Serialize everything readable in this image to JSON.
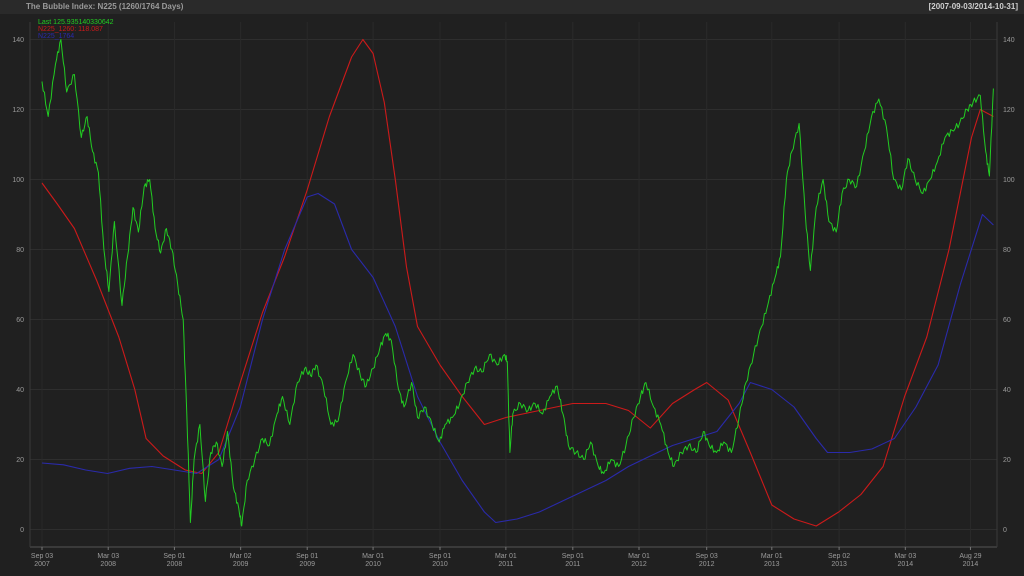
{
  "header": {
    "title": "The Bubble Index: N225 (1260/1764 Days)",
    "date_range": "[2007-09-03/2014-10-31]"
  },
  "chart_data": {
    "type": "line",
    "ylim": [
      -5,
      145
    ],
    "yticks": [
      0,
      20,
      40,
      60,
      80,
      100,
      120,
      140
    ],
    "xlim": [
      "2007-08-01",
      "2014-11-10"
    ],
    "xticks": [
      {
        "date": "2007-09-03",
        "line1": "Sep 03",
        "line2": "2007"
      },
      {
        "date": "2008-03-03",
        "line1": "Mar 03",
        "line2": "2008"
      },
      {
        "date": "2008-09-01",
        "line1": "Sep 01",
        "line2": "2008"
      },
      {
        "date": "2009-03-02",
        "line1": "Mar 02",
        "line2": "2009"
      },
      {
        "date": "2009-09-01",
        "line1": "Sep 01",
        "line2": "2009"
      },
      {
        "date": "2010-03-01",
        "line1": "Mar 01",
        "line2": "2010"
      },
      {
        "date": "2010-09-01",
        "line1": "Sep 01",
        "line2": "2010"
      },
      {
        "date": "2011-03-01",
        "line1": "Mar 01",
        "line2": "2011"
      },
      {
        "date": "2011-09-01",
        "line1": "Sep 01",
        "line2": "2011"
      },
      {
        "date": "2012-03-01",
        "line1": "Mar 01",
        "line2": "2012"
      },
      {
        "date": "2012-09-03",
        "line1": "Sep 03",
        "line2": "2012"
      },
      {
        "date": "2013-03-01",
        "line1": "Mar 01",
        "line2": "2013"
      },
      {
        "date": "2013-09-02",
        "line1": "Sep 02",
        "line2": "2013"
      },
      {
        "date": "2014-03-03",
        "line1": "Mar 03",
        "line2": "2014"
      },
      {
        "date": "2014-08-29",
        "line1": "Aug 29",
        "line2": "2014"
      }
    ],
    "grid": true,
    "legend_position": "top-left",
    "series": [
      {
        "name": "Last 125.935140330642",
        "color": "#22cc22",
        "points": [
          [
            "2007-09-03",
            128
          ],
          [
            "2007-09-20",
            118
          ],
          [
            "2007-10-10",
            133
          ],
          [
            "2007-10-25",
            140
          ],
          [
            "2007-11-10",
            125
          ],
          [
            "2007-12-01",
            130
          ],
          [
            "2007-12-20",
            112
          ],
          [
            "2008-01-05",
            118
          ],
          [
            "2008-01-20",
            108
          ],
          [
            "2008-02-05",
            102
          ],
          [
            "2008-02-20",
            80
          ],
          [
            "2008-03-05",
            68
          ],
          [
            "2008-03-20",
            88
          ],
          [
            "2008-04-10",
            64
          ],
          [
            "2008-04-25",
            78
          ],
          [
            "2008-05-10",
            92
          ],
          [
            "2008-05-25",
            85
          ],
          [
            "2008-06-10",
            98
          ],
          [
            "2008-06-25",
            100
          ],
          [
            "2008-07-10",
            86
          ],
          [
            "2008-07-25",
            79
          ],
          [
            "2008-08-10",
            86
          ],
          [
            "2008-08-25",
            80
          ],
          [
            "2008-09-10",
            70
          ],
          [
            "2008-09-25",
            60
          ],
          [
            "2008-10-05",
            33
          ],
          [
            "2008-10-15",
            2
          ],
          [
            "2008-10-25",
            20
          ],
          [
            "2008-11-10",
            30
          ],
          [
            "2008-11-25",
            8
          ],
          [
            "2008-12-10",
            22
          ],
          [
            "2008-12-25",
            25
          ],
          [
            "2009-01-10",
            18
          ],
          [
            "2009-01-25",
            28
          ],
          [
            "2009-02-10",
            12
          ],
          [
            "2009-02-25",
            6
          ],
          [
            "2009-03-05",
            1
          ],
          [
            "2009-03-20",
            14
          ],
          [
            "2009-04-10",
            20
          ],
          [
            "2009-05-01",
            26
          ],
          [
            "2009-05-20",
            24
          ],
          [
            "2009-06-10",
            33
          ],
          [
            "2009-06-25",
            38
          ],
          [
            "2009-07-15",
            30
          ],
          [
            "2009-08-05",
            42
          ],
          [
            "2009-08-25",
            46
          ],
          [
            "2009-09-10",
            44
          ],
          [
            "2009-09-25",
            47
          ],
          [
            "2009-10-15",
            41
          ],
          [
            "2009-11-05",
            30
          ],
          [
            "2009-11-25",
            31
          ],
          [
            "2009-12-15",
            42
          ],
          [
            "2010-01-05",
            50
          ],
          [
            "2010-01-25",
            44
          ],
          [
            "2010-02-10",
            41
          ],
          [
            "2010-03-01",
            46
          ],
          [
            "2010-03-20",
            52
          ],
          [
            "2010-04-05",
            56
          ],
          [
            "2010-04-20",
            54
          ],
          [
            "2010-05-10",
            40
          ],
          [
            "2010-05-25",
            35
          ],
          [
            "2010-06-15",
            42
          ],
          [
            "2010-07-01",
            32
          ],
          [
            "2010-07-20",
            35
          ],
          [
            "2010-08-10",
            30
          ],
          [
            "2010-08-30",
            25
          ],
          [
            "2010-09-15",
            30
          ],
          [
            "2010-10-05",
            32
          ],
          [
            "2010-10-25",
            36
          ],
          [
            "2010-11-15",
            42
          ],
          [
            "2010-12-05",
            46
          ],
          [
            "2010-12-25",
            45
          ],
          [
            "2011-01-15",
            50
          ],
          [
            "2011-02-05",
            47
          ],
          [
            "2011-02-25",
            50
          ],
          [
            "2011-03-05",
            48
          ],
          [
            "2011-03-12",
            22
          ],
          [
            "2011-03-20",
            33
          ],
          [
            "2011-04-10",
            36
          ],
          [
            "2011-05-01",
            34
          ],
          [
            "2011-05-20",
            36
          ],
          [
            "2011-06-10",
            33
          ],
          [
            "2011-06-30",
            38
          ],
          [
            "2011-07-20",
            41
          ],
          [
            "2011-08-05",
            33
          ],
          [
            "2011-08-20",
            24
          ],
          [
            "2011-09-10",
            22
          ],
          [
            "2011-10-01",
            20
          ],
          [
            "2011-10-20",
            25
          ],
          [
            "2011-11-10",
            18
          ],
          [
            "2011-11-25",
            16
          ],
          [
            "2011-12-15",
            20
          ],
          [
            "2012-01-05",
            18
          ],
          [
            "2012-01-25",
            24
          ],
          [
            "2012-02-15",
            32
          ],
          [
            "2012-03-05",
            38
          ],
          [
            "2012-03-20",
            42
          ],
          [
            "2012-04-10",
            35
          ],
          [
            "2012-04-30",
            30
          ],
          [
            "2012-05-20",
            22
          ],
          [
            "2012-06-05",
            18
          ],
          [
            "2012-06-25",
            22
          ],
          [
            "2012-07-15",
            24
          ],
          [
            "2012-08-05",
            22
          ],
          [
            "2012-08-25",
            28
          ],
          [
            "2012-09-10",
            24
          ],
          [
            "2012-09-30",
            22
          ],
          [
            "2012-10-20",
            25
          ],
          [
            "2012-11-10",
            22
          ],
          [
            "2012-12-01",
            32
          ],
          [
            "2012-12-20",
            42
          ],
          [
            "2013-01-10",
            50
          ],
          [
            "2013-02-01",
            58
          ],
          [
            "2013-02-20",
            65
          ],
          [
            "2013-03-10",
            72
          ],
          [
            "2013-03-25",
            78
          ],
          [
            "2013-04-10",
            100
          ],
          [
            "2013-04-25",
            108
          ],
          [
            "2013-05-15",
            116
          ],
          [
            "2013-06-01",
            90
          ],
          [
            "2013-06-15",
            74
          ],
          [
            "2013-07-01",
            92
          ],
          [
            "2013-07-20",
            100
          ],
          [
            "2013-08-05",
            88
          ],
          [
            "2013-08-25",
            85
          ],
          [
            "2013-09-10",
            96
          ],
          [
            "2013-09-30",
            100
          ],
          [
            "2013-10-20",
            98
          ],
          [
            "2013-11-10",
            108
          ],
          [
            "2013-11-30",
            118
          ],
          [
            "2013-12-20",
            123
          ],
          [
            "2014-01-10",
            115
          ],
          [
            "2014-01-30",
            100
          ],
          [
            "2014-02-20",
            97
          ],
          [
            "2014-03-10",
            106
          ],
          [
            "2014-03-30",
            100
          ],
          [
            "2014-04-20",
            96
          ],
          [
            "2014-05-10",
            100
          ],
          [
            "2014-05-30",
            105
          ],
          [
            "2014-06-20",
            112
          ],
          [
            "2014-07-10",
            114
          ],
          [
            "2014-07-30",
            116
          ],
          [
            "2014-08-20",
            120
          ],
          [
            "2014-09-05",
            122
          ],
          [
            "2014-09-25",
            124
          ],
          [
            "2014-10-10",
            108
          ],
          [
            "2014-10-20",
            101
          ],
          [
            "2014-10-31",
            126
          ]
        ]
      },
      {
        "name": "N225_1260: 118.087",
        "color": "#cc1a1a",
        "points": [
          [
            "2007-09-03",
            99
          ],
          [
            "2007-10-15",
            93
          ],
          [
            "2007-12-01",
            86
          ],
          [
            "2008-02-01",
            71
          ],
          [
            "2008-04-01",
            55
          ],
          [
            "2008-05-15",
            40
          ],
          [
            "2008-06-15",
            26
          ],
          [
            "2008-08-01",
            21
          ],
          [
            "2008-10-01",
            17
          ],
          [
            "2008-11-15",
            16
          ],
          [
            "2009-01-01",
            22
          ],
          [
            "2009-03-01",
            42
          ],
          [
            "2009-05-01",
            62
          ],
          [
            "2009-07-01",
            78
          ],
          [
            "2009-09-01",
            97
          ],
          [
            "2009-11-01",
            118
          ],
          [
            "2010-01-01",
            135
          ],
          [
            "2010-02-01",
            140
          ],
          [
            "2010-03-01",
            136
          ],
          [
            "2010-04-01",
            122
          ],
          [
            "2010-05-01",
            100
          ],
          [
            "2010-06-01",
            75
          ],
          [
            "2010-07-01",
            58
          ],
          [
            "2010-09-01",
            47
          ],
          [
            "2010-11-01",
            38
          ],
          [
            "2011-01-01",
            30
          ],
          [
            "2011-03-01",
            32
          ],
          [
            "2011-06-01",
            34
          ],
          [
            "2011-09-01",
            36
          ],
          [
            "2011-12-01",
            36
          ],
          [
            "2012-02-01",
            34
          ],
          [
            "2012-04-01",
            29
          ],
          [
            "2012-06-01",
            36
          ],
          [
            "2012-08-01",
            40
          ],
          [
            "2012-09-03",
            42
          ],
          [
            "2012-11-01",
            37
          ],
          [
            "2013-01-01",
            22
          ],
          [
            "2013-03-01",
            7
          ],
          [
            "2013-05-01",
            3
          ],
          [
            "2013-07-01",
            1
          ],
          [
            "2013-09-01",
            5
          ],
          [
            "2013-11-01",
            10
          ],
          [
            "2014-01-01",
            18
          ],
          [
            "2014-03-01",
            38
          ],
          [
            "2014-05-01",
            55
          ],
          [
            "2014-07-01",
            80
          ],
          [
            "2014-09-01",
            112
          ],
          [
            "2014-09-25",
            120
          ],
          [
            "2014-10-31",
            118
          ]
        ]
      },
      {
        "name": "N225_1764",
        "color": "#2a2aaa",
        "points": [
          [
            "2007-09-03",
            19
          ],
          [
            "2007-11-01",
            18.5
          ],
          [
            "2008-01-01",
            17
          ],
          [
            "2008-03-01",
            16
          ],
          [
            "2008-05-01",
            17.5
          ],
          [
            "2008-07-01",
            18
          ],
          [
            "2008-09-01",
            17
          ],
          [
            "2008-11-01",
            16
          ],
          [
            "2009-01-01",
            20
          ],
          [
            "2009-03-01",
            35
          ],
          [
            "2009-05-01",
            60
          ],
          [
            "2009-07-01",
            80
          ],
          [
            "2009-09-01",
            95
          ],
          [
            "2009-10-01",
            96
          ],
          [
            "2009-11-15",
            93
          ],
          [
            "2010-01-01",
            80
          ],
          [
            "2010-03-01",
            72
          ],
          [
            "2010-05-01",
            58
          ],
          [
            "2010-07-01",
            38
          ],
          [
            "2010-09-01",
            25
          ],
          [
            "2010-11-01",
            14
          ],
          [
            "2011-01-01",
            5
          ],
          [
            "2011-02-01",
            2
          ],
          [
            "2011-04-01",
            3
          ],
          [
            "2011-06-01",
            5
          ],
          [
            "2011-08-01",
            8
          ],
          [
            "2011-10-01",
            11
          ],
          [
            "2011-12-01",
            14
          ],
          [
            "2012-02-01",
            18
          ],
          [
            "2012-04-01",
            21
          ],
          [
            "2012-06-01",
            24
          ],
          [
            "2012-08-01",
            26
          ],
          [
            "2012-10-01",
            28
          ],
          [
            "2012-12-01",
            36
          ],
          [
            "2013-01-01",
            42
          ],
          [
            "2013-03-01",
            40
          ],
          [
            "2013-05-01",
            35
          ],
          [
            "2013-07-01",
            26
          ],
          [
            "2013-08-01",
            22
          ],
          [
            "2013-10-01",
            22
          ],
          [
            "2013-12-01",
            23
          ],
          [
            "2014-02-01",
            26
          ],
          [
            "2014-04-01",
            35
          ],
          [
            "2014-06-01",
            47
          ],
          [
            "2014-08-01",
            70
          ],
          [
            "2014-10-01",
            90
          ],
          [
            "2014-10-31",
            87
          ]
        ]
      }
    ]
  }
}
